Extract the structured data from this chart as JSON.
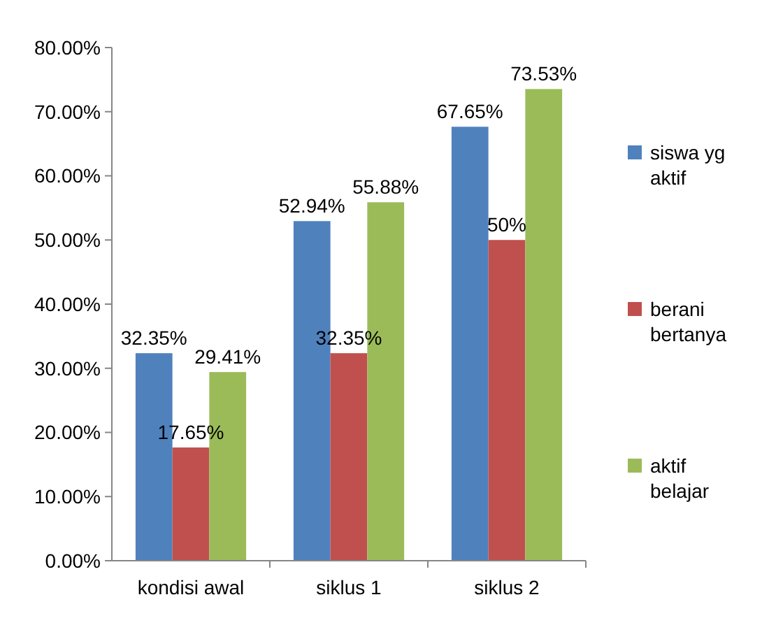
{
  "chart_data": {
    "type": "bar",
    "categories": [
      "kondisi awal",
      "siklus 1",
      "siklus 2"
    ],
    "series": [
      {
        "name": "siswa yg aktif",
        "color": "#4f81bd",
        "values": [
          32.35,
          52.94,
          67.65
        ],
        "value_labels": [
          "32.35%",
          "52.94%",
          "67.65%"
        ]
      },
      {
        "name": "berani bertanya",
        "color": "#c0504d",
        "values": [
          17.65,
          32.35,
          50
        ],
        "value_labels": [
          "17.65%",
          "32.35%",
          "50%"
        ]
      },
      {
        "name": "aktif belajar",
        "color": "#9bbb59",
        "values": [
          29.41,
          55.88,
          73.53
        ],
        "value_labels": [
          "29.41%",
          "55.88%",
          "73.53%"
        ]
      }
    ],
    "ylim": [
      0,
      80
    ],
    "yticks": [
      {
        "value": 0,
        "label": "0.00%"
      },
      {
        "value": 10,
        "label": "10.00%"
      },
      {
        "value": 20,
        "label": "20.00%"
      },
      {
        "value": 30,
        "label": "30.00%"
      },
      {
        "value": 40,
        "label": "40.00%"
      },
      {
        "value": 50,
        "label": "50.00%"
      },
      {
        "value": 60,
        "label": "60.00%"
      },
      {
        "value": 70,
        "label": "70.00%"
      },
      {
        "value": 80,
        "label": "80.00%"
      }
    ],
    "grid": false,
    "legend": "right"
  }
}
